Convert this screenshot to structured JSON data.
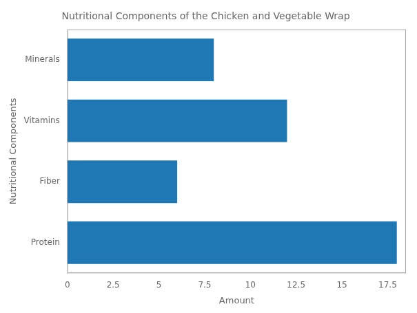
{
  "chart_data": {
    "type": "bar",
    "orientation": "horizontal",
    "title": "Nutritional Components of the Chicken and Vegetable Wrap",
    "categories": [
      "Protein",
      "Fiber",
      "Vitamins",
      "Minerals"
    ],
    "values": [
      18,
      6,
      12,
      8
    ],
    "color": "#1f77b4",
    "xlabel": "Amount",
    "ylabel": "Nutritional Components",
    "xlim": [
      0,
      18.5
    ],
    "xticks": [
      0,
      2.5,
      5,
      7.5,
      10,
      12.5,
      15,
      17.5
    ],
    "grid": false
  }
}
